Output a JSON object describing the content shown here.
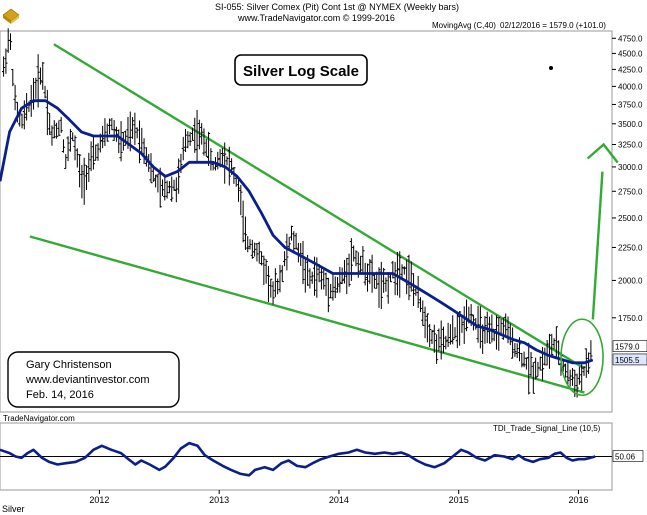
{
  "header": {
    "line1": "SI-055:  Silver Comex (Pit) Cont 1st @ NYMEX  (Weekly bars)",
    "line2": "www.TradeNavigator.com © 1999-2016",
    "study": "MovingAvg (C,40)",
    "quote": "02/12/2016 = 1579.0 (+101.0)"
  },
  "annotation": {
    "title": "Silver Log Scale",
    "author_lines": [
      "Gary Christenson",
      "www.deviantinvestor.com",
      "Feb. 14, 2016"
    ],
    "watermark": "TradeNavigator.com",
    "indicator_label": "TDI_Trade_Signal_Line (10,5)",
    "footer": "Silver"
  },
  "chart_data": [
    {
      "type": "bar",
      "subtype": "ohlc-weekly",
      "title": "Silver Log Scale",
      "log_scale": true,
      "ylim": [
        1250,
        4875
      ],
      "y_ticks": [
        1750,
        2000,
        2250,
        2500,
        2750,
        3000,
        3250,
        3500,
        3750,
        4000,
        4250,
        4500,
        4750
      ],
      "x_ticks": [
        "2012",
        "2013",
        "2014",
        "2015",
        "2016"
      ],
      "xlim": [
        2011.17,
        2016.28
      ],
      "last_close": 1579.0,
      "ma_last": 1505.5,
      "last_close_label": "1579.0",
      "ma_last_label": "1505.5",
      "price_path": [
        [
          2011.2,
          4250
        ],
        [
          2011.25,
          4850
        ],
        [
          2011.3,
          3700
        ],
        [
          2011.35,
          3500
        ],
        [
          2011.45,
          3900
        ],
        [
          2011.52,
          4250
        ],
        [
          2011.6,
          3350
        ],
        [
          2011.68,
          3500
        ],
        [
          2011.72,
          3050
        ],
        [
          2011.77,
          3400
        ],
        [
          2011.85,
          2850
        ],
        [
          2011.95,
          3100
        ],
        [
          2012.03,
          3300
        ],
        [
          2012.1,
          3500
        ],
        [
          2012.18,
          3250
        ],
        [
          2012.3,
          3450
        ],
        [
          2012.38,
          3200
        ],
        [
          2012.45,
          2900
        ],
        [
          2012.52,
          2750
        ],
        [
          2012.58,
          2800
        ],
        [
          2012.65,
          2800
        ],
        [
          2012.72,
          3300
        ],
        [
          2012.8,
          3400
        ],
        [
          2012.88,
          3300
        ],
        [
          2012.95,
          3000
        ],
        [
          2013.03,
          3150
        ],
        [
          2013.1,
          3000
        ],
        [
          2013.17,
          2750
        ],
        [
          2013.22,
          2300
        ],
        [
          2013.3,
          2250
        ],
        [
          2013.38,
          2100
        ],
        [
          2013.45,
          1900
        ],
        [
          2013.52,
          2050
        ],
        [
          2013.6,
          2350
        ],
        [
          2013.68,
          2200
        ],
        [
          2013.75,
          2000
        ],
        [
          2013.82,
          2050
        ],
        [
          2013.92,
          1950
        ],
        [
          2013.98,
          1950
        ],
        [
          2014.05,
          2050
        ],
        [
          2014.12,
          2200
        ],
        [
          2014.2,
          2100
        ],
        [
          2014.3,
          2000
        ],
        [
          2014.38,
          1950
        ],
        [
          2014.45,
          2050
        ],
        [
          2014.52,
          2100
        ],
        [
          2014.58,
          2050
        ],
        [
          2014.65,
          1900
        ],
        [
          2014.72,
          1750
        ],
        [
          2014.8,
          1600
        ],
        [
          2014.88,
          1600
        ],
        [
          2014.95,
          1650
        ],
        [
          2015.03,
          1700
        ],
        [
          2015.08,
          1800
        ],
        [
          2015.15,
          1700
        ],
        [
          2015.22,
          1650
        ],
        [
          2015.3,
          1650
        ],
        [
          2015.38,
          1700
        ],
        [
          2015.45,
          1600
        ],
        [
          2015.5,
          1550
        ],
        [
          2015.55,
          1500
        ],
        [
          2015.62,
          1450
        ],
        [
          2015.68,
          1480
        ],
        [
          2015.75,
          1550
        ],
        [
          2015.8,
          1600
        ],
        [
          2015.85,
          1500
        ],
        [
          2015.9,
          1440
        ],
        [
          2015.95,
          1400
        ],
        [
          2016.0,
          1400
        ],
        [
          2016.05,
          1450
        ],
        [
          2016.08,
          1480
        ],
        [
          2016.12,
          1579
        ]
      ],
      "moving_average": [
        [
          2011.17,
          2850
        ],
        [
          2011.25,
          3400
        ],
        [
          2011.35,
          3700
        ],
        [
          2011.45,
          3800
        ],
        [
          2011.55,
          3800
        ],
        [
          2011.65,
          3700
        ],
        [
          2011.75,
          3550
        ],
        [
          2011.85,
          3400
        ],
        [
          2011.95,
          3350
        ],
        [
          2012.05,
          3350
        ],
        [
          2012.15,
          3350
        ],
        [
          2012.25,
          3250
        ],
        [
          2012.35,
          3150
        ],
        [
          2012.45,
          3000
        ],
        [
          2012.55,
          2900
        ],
        [
          2012.65,
          2950
        ],
        [
          2012.75,
          3050
        ],
        [
          2012.85,
          3050
        ],
        [
          2012.95,
          3050
        ],
        [
          2013.05,
          3000
        ],
        [
          2013.15,
          2900
        ],
        [
          2013.25,
          2750
        ],
        [
          2013.35,
          2550
        ],
        [
          2013.45,
          2350
        ],
        [
          2013.55,
          2250
        ],
        [
          2013.65,
          2200
        ],
        [
          2013.75,
          2150
        ],
        [
          2013.85,
          2100
        ],
        [
          2013.95,
          2050
        ],
        [
          2014.05,
          2050
        ],
        [
          2014.15,
          2050
        ],
        [
          2014.25,
          2050
        ],
        [
          2014.35,
          2050
        ],
        [
          2014.45,
          2050
        ],
        [
          2014.55,
          2000
        ],
        [
          2014.65,
          1950
        ],
        [
          2014.75,
          1900
        ],
        [
          2014.85,
          1850
        ],
        [
          2014.95,
          1800
        ],
        [
          2015.05,
          1750
        ],
        [
          2015.15,
          1700
        ],
        [
          2015.25,
          1680
        ],
        [
          2015.35,
          1650
        ],
        [
          2015.45,
          1620
        ],
        [
          2015.55,
          1600
        ],
        [
          2015.65,
          1560
        ],
        [
          2015.75,
          1530
        ],
        [
          2015.85,
          1510
        ],
        [
          2015.95,
          1490
        ],
        [
          2016.05,
          1490
        ],
        [
          2016.12,
          1505.5
        ]
      ],
      "trendlines": [
        {
          "name": "upper",
          "from": [
            2011.62,
            4650
          ],
          "to": [
            2016.05,
            1460
          ]
        },
        {
          "name": "lower",
          "from": [
            2011.42,
            2340
          ],
          "to": [
            2016.05,
            1340
          ]
        }
      ],
      "projection_arrow": {
        "from": [
          2016.12,
          1740
        ],
        "to": [
          2016.2,
          2950
        ]
      },
      "projection_arrow_2": {
        "from": [
          2016.12,
          1740
        ],
        "to": [
          2016.22,
          3250
        ]
      }
    },
    {
      "type": "line",
      "title": "TDI_Trade_Signal_Line (10,5)",
      "last_value_label": "50.06",
      "ylim": [
        0,
        100
      ],
      "baseline": 50,
      "series": [
        {
          "values_by_x": [
            [
              2011.17,
              60
            ],
            [
              2011.25,
              55
            ],
            [
              2011.3,
              50
            ],
            [
              2011.35,
              48
            ],
            [
              2011.4,
              55
            ],
            [
              2011.45,
              60
            ],
            [
              2011.52,
              48
            ],
            [
              2011.58,
              42
            ],
            [
              2011.65,
              38
            ],
            [
              2011.72,
              40
            ],
            [
              2011.8,
              42
            ],
            [
              2011.88,
              48
            ],
            [
              2011.95,
              60
            ],
            [
              2012.02,
              66
            ],
            [
              2012.1,
              60
            ],
            [
              2012.18,
              55
            ],
            [
              2012.25,
              45
            ],
            [
              2012.3,
              38
            ],
            [
              2012.35,
              44
            ],
            [
              2012.42,
              38
            ],
            [
              2012.5,
              30
            ],
            [
              2012.55,
              35
            ],
            [
              2012.62,
              48
            ],
            [
              2012.68,
              62
            ],
            [
              2012.75,
              70
            ],
            [
              2012.82,
              66
            ],
            [
              2012.88,
              52
            ],
            [
              2012.95,
              44
            ],
            [
              2013.03,
              36
            ],
            [
              2013.1,
              30
            ],
            [
              2013.18,
              24
            ],
            [
              2013.25,
              22
            ],
            [
              2013.3,
              30
            ],
            [
              2013.38,
              34
            ],
            [
              2013.45,
              30
            ],
            [
              2013.52,
              40
            ],
            [
              2013.58,
              44
            ],
            [
              2013.65,
              36
            ],
            [
              2013.72,
              34
            ],
            [
              2013.78,
              40
            ],
            [
              2013.85,
              46
            ],
            [
              2013.92,
              50
            ],
            [
              2014.0,
              54
            ],
            [
              2014.08,
              56
            ],
            [
              2014.15,
              60
            ],
            [
              2014.22,
              56
            ],
            [
              2014.3,
              54
            ],
            [
              2014.38,
              56
            ],
            [
              2014.45,
              54
            ],
            [
              2014.52,
              56
            ],
            [
              2014.58,
              52
            ],
            [
              2014.65,
              44
            ],
            [
              2014.72,
              38
            ],
            [
              2014.8,
              34
            ],
            [
              2014.88,
              40
            ],
            [
              2014.95,
              50
            ],
            [
              2015.02,
              60
            ],
            [
              2015.08,
              56
            ],
            [
              2015.15,
              48
            ],
            [
              2015.22,
              44
            ],
            [
              2015.3,
              52
            ],
            [
              2015.38,
              50
            ],
            [
              2015.45,
              46
            ],
            [
              2015.5,
              52
            ],
            [
              2015.55,
              46
            ],
            [
              2015.62,
              42
            ],
            [
              2015.68,
              46
            ],
            [
              2015.75,
              48
            ],
            [
              2015.8,
              54
            ],
            [
              2015.85,
              56
            ],
            [
              2015.9,
              48
            ],
            [
              2015.95,
              44
            ],
            [
              2016.0,
              46
            ],
            [
              2016.05,
              46
            ],
            [
              2016.1,
              48
            ],
            [
              2016.14,
              50
            ]
          ]
        }
      ]
    }
  ]
}
